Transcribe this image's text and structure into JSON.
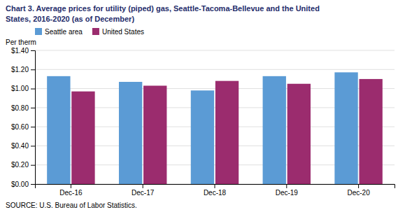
{
  "chart_data": {
    "type": "bar",
    "title": "Chart 3. Average prices for utility (piped) gas, Seattle-Tacoma-Bellevue and the United",
    "subtitle": "States, 2016-2020  (as of December)",
    "y_label": "Per therm",
    "annotations": [
      "SOURCE: U.S. Bureau of Labor Statistics."
    ],
    "categories": [
      "Dec-16",
      "Dec-17",
      "Dec-18",
      "Dec-19",
      "Dec-20"
    ],
    "series": [
      {
        "name": "Seattle area",
        "color": "#5B9BD5",
        "values": [
          1.13,
          1.07,
          0.98,
          1.13,
          1.17
        ]
      },
      {
        "name": "United States",
        "color": "#9B2C6E",
        "values": [
          0.97,
          1.03,
          1.08,
          1.05,
          1.1
        ]
      }
    ],
    "ylim": [
      0,
      1.4
    ],
    "yticks": [
      {
        "value": 0.0,
        "label": "$0.00"
      },
      {
        "value": 0.2,
        "label": "$0.20"
      },
      {
        "value": 0.4,
        "label": "$0.40"
      },
      {
        "value": 0.6,
        "label": "$0.60"
      },
      {
        "value": 0.8,
        "label": "$0.80"
      },
      {
        "value": 1.0,
        "label": "$1.00"
      },
      {
        "value": 1.2,
        "label": "$1.20"
      },
      {
        "value": 1.4,
        "label": "$1.40"
      }
    ],
    "grid": true,
    "legend": "upper left"
  }
}
